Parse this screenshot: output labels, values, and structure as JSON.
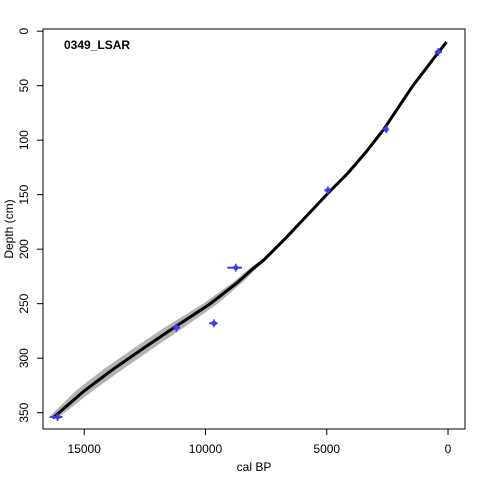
{
  "chart_data": {
    "type": "line",
    "title": "0349_LSAR",
    "xlabel": "cal BP",
    "ylabel": "Depth (cm)",
    "xlim": [
      16700,
      -700
    ],
    "ylim": [
      -2,
      365
    ],
    "x_ticks": [
      15000,
      10000,
      5000,
      0
    ],
    "y_ticks": [
      0,
      50,
      100,
      150,
      200,
      250,
      300,
      350
    ],
    "colors": {
      "model_line": "#000000",
      "uncertainty_band": "#b3b3b3",
      "dates": "#3b3bf0"
    },
    "age_depth_model": {
      "depth": [
        10,
        20,
        30,
        50,
        70,
        90,
        110,
        130,
        148,
        170,
        190,
        210,
        218,
        230,
        250,
        272,
        290,
        310,
        330,
        355
      ],
      "age": [
        60,
        420,
        760,
        1450,
        2050,
        2650,
        3350,
        4120,
        4920,
        5850,
        6700,
        7600,
        8050,
        8650,
        9800,
        11300,
        12500,
        13800,
        15000,
        16300
      ],
      "age_upper": [
        10,
        380,
        720,
        1400,
        2000,
        2600,
        3290,
        4060,
        4860,
        5780,
        6620,
        7500,
        7900,
        8450,
        9500,
        10900,
        12100,
        13400,
        14650,
        16100
      ],
      "age_lower": [
        110,
        460,
        800,
        1500,
        2100,
        2700,
        3410,
        4180,
        4980,
        5920,
        6780,
        7700,
        8200,
        8850,
        10100,
        11700,
        12900,
        14200,
        15350,
        16500
      ]
    },
    "dated_samples": [
      {
        "depth": 19,
        "age": 400,
        "age_min": 250,
        "age_max": 550
      },
      {
        "depth": 90,
        "age": 2550,
        "age_min": 2450,
        "age_max": 2700
      },
      {
        "depth": 146,
        "age": 4950,
        "age_min": 4850,
        "age_max": 5100
      },
      {
        "depth": 217,
        "age": 8750,
        "age_min": 8500,
        "age_max": 9100
      },
      {
        "depth": 268,
        "age": 9650,
        "age_min": 9500,
        "age_max": 9850
      },
      {
        "depth": 272,
        "age": 11200,
        "age_min": 11050,
        "age_max": 11350
      },
      {
        "depth": 354,
        "age": 16100,
        "age_min": 15900,
        "age_max": 16400
      }
    ]
  }
}
